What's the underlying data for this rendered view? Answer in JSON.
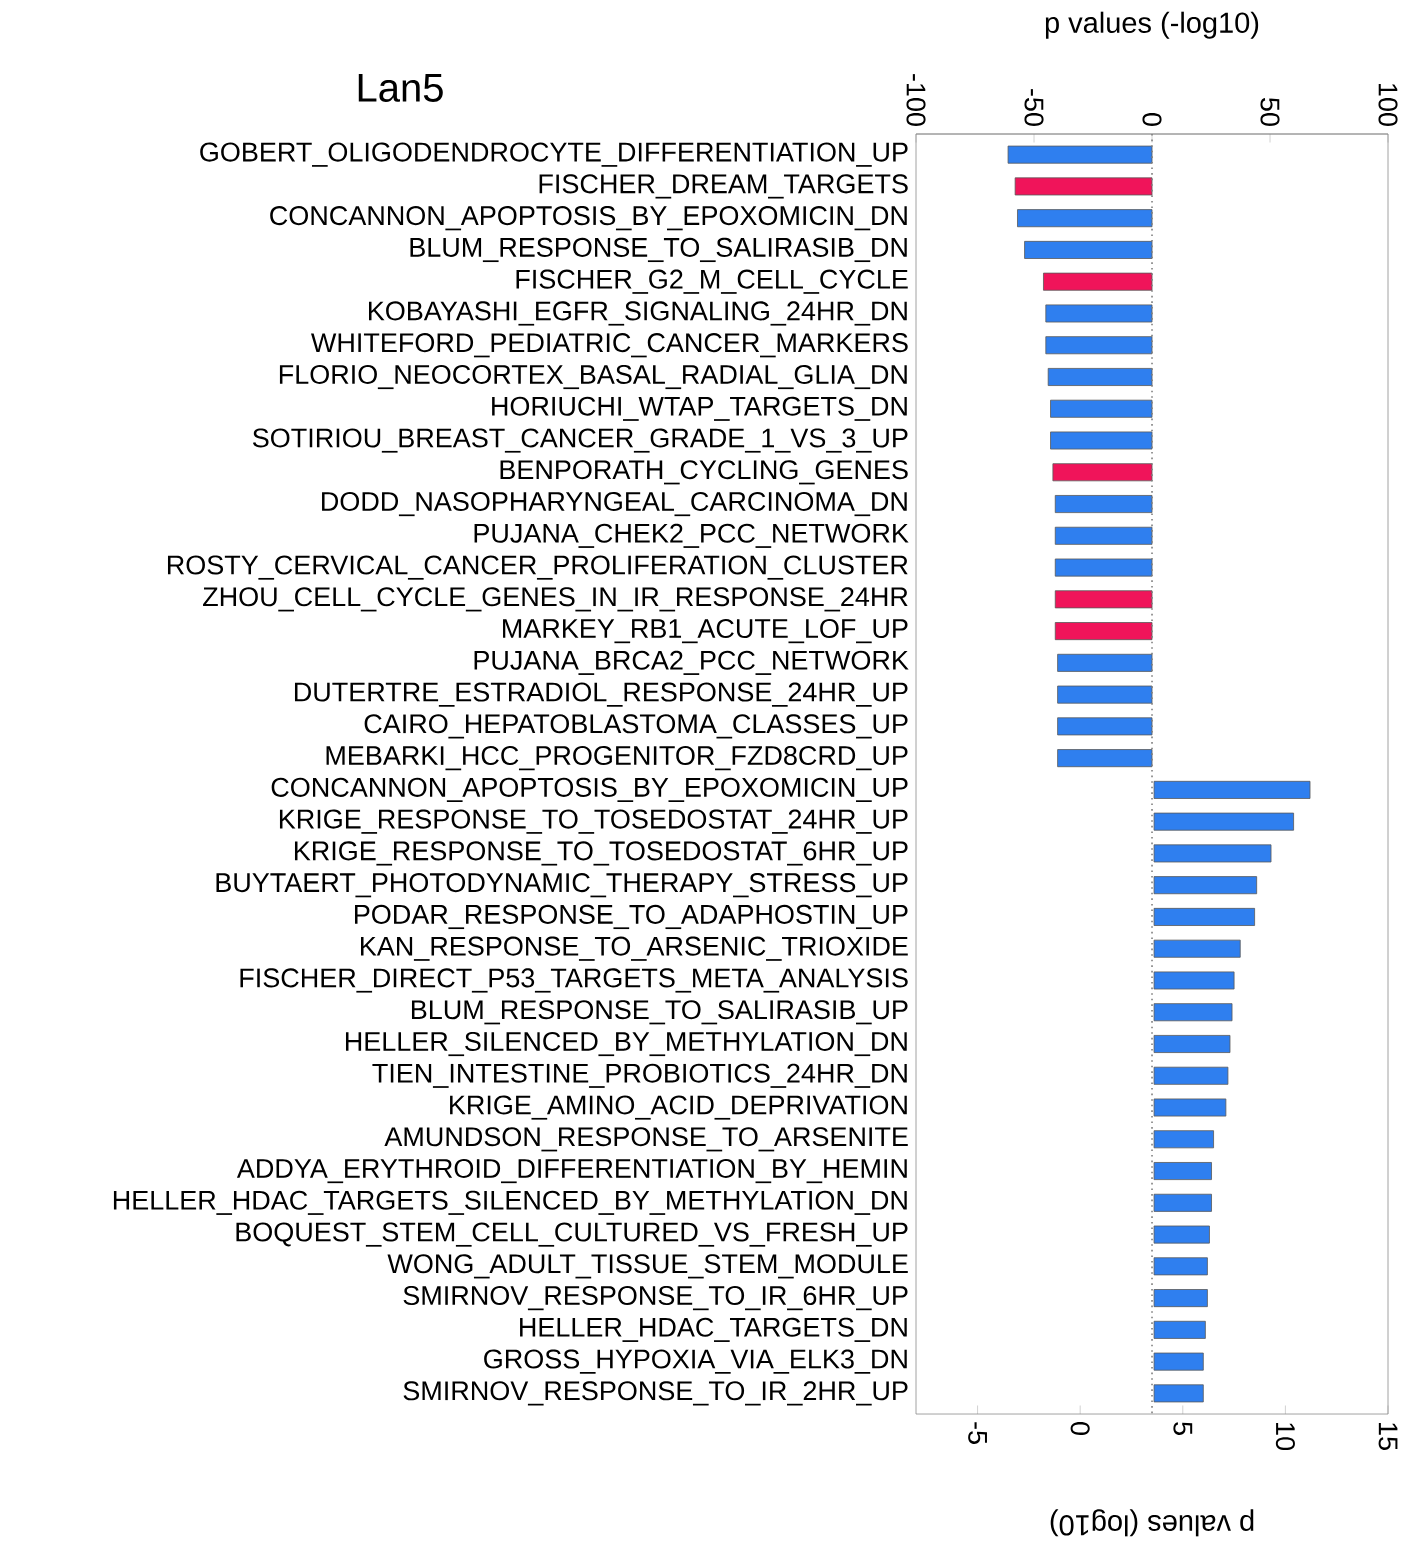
{
  "chart_data": {
    "type": "bar",
    "orientation": "horizontal",
    "title": "Lan5",
    "x2label": "p values (-log10)",
    "xlabel": "p values (log10)",
    "categories": [
      "GOBERT_OLIGODENDROCYTE_DIFFERENTIATION_UP",
      "FISCHER_DREAM_TARGETS",
      "CONCANNON_APOPTOSIS_BY_EPOXOMICIN_DN",
      "BLUM_RESPONSE_TO_SALIRASIB_DN",
      "FISCHER_G2_M_CELL_CYCLE",
      "KOBAYASHI_EGFR_SIGNALING_24HR_DN",
      "WHITEFORD_PEDIATRIC_CANCER_MARKERS",
      "FLORIO_NEOCORTEX_BASAL_RADIAL_GLIA_DN",
      "HORIUCHI_WTAP_TARGETS_DN",
      "SOTIRIOU_BREAST_CANCER_GRADE_1_VS_3_UP",
      "BENPORATH_CYCLING_GENES",
      "DODD_NASOPHARYNGEAL_CARCINOMA_DN",
      "PUJANA_CHEK2_PCC_NETWORK",
      "ROSTY_CERVICAL_CANCER_PROLIFERATION_CLUSTER",
      "ZHOU_CELL_CYCLE_GENES_IN_IR_RESPONSE_24HR",
      "MARKEY_RB1_ACUTE_LOF_UP",
      "PUJANA_BRCA2_PCC_NETWORK",
      "DUTERTRE_ESTRADIOL_RESPONSE_24HR_UP",
      "CAIRO_HEPATOBLASTOMA_CLASSES_UP",
      "MEBARKI_HCC_PROGENITOR_FZD8CRD_UP",
      "CONCANNON_APOPTOSIS_BY_EPOXOMICIN_UP",
      "KRIGE_RESPONSE_TO_TOSEDOSTAT_24HR_UP",
      "KRIGE_RESPONSE_TO_TOSEDOSTAT_6HR_UP",
      "BUYTAERT_PHOTODYNAMIC_THERAPY_STRESS_UP",
      "PODAR_RESPONSE_TO_ADAPHOSTIN_UP",
      "KAN_RESPONSE_TO_ARSENIC_TRIOXIDE",
      "FISCHER_DIRECT_P53_TARGETS_META_ANALYSIS",
      "BLUM_RESPONSE_TO_SALIRASIB_UP",
      "HELLER_SILENCED_BY_METHYLATION_DN",
      "TIEN_INTESTINE_PROBIOTICS_24HR_DN",
      "KRIGE_AMINO_ACID_DEPRIVATION",
      "AMUNDSON_RESPONSE_TO_ARSENITE",
      "ADDYA_ERYTHROID_DIFFERENTIATION_BY_HEMIN",
      "HELLER_HDAC_TARGETS_SILENCED_BY_METHYLATION_DN",
      "BOQUEST_STEM_CELL_CULTURED_VS_FRESH_UP",
      "WONG_ADULT_TISSUE_STEM_MODULE",
      "SMIRNOV_RESPONSE_TO_IR_6HR_UP",
      "HELLER_HDAC_TARGETS_DN",
      "GROSS_HYPOXIA_VIA_ELK3_DN",
      "SMIRNOV_RESPONSE_TO_IR_2HR_UP"
    ],
    "x2lim": [
      -100,
      100
    ],
    "x2ticks": [
      -100,
      -50,
      0,
      50,
      100
    ],
    "xlim": [
      -8,
      15
    ],
    "xticks": [
      -5,
      0,
      5,
      10,
      15
    ],
    "series": [
      {
        "axis": "x2",
        "values": [
          -61,
          -58,
          -57,
          -54,
          -46,
          -45,
          -45,
          -44,
          -43,
          -43,
          -42,
          -41,
          -41,
          -41,
          -41,
          -41,
          -40,
          -40,
          -40,
          -40,
          null,
          null,
          null,
          null,
          null,
          null,
          null,
          null,
          null,
          null,
          null,
          null,
          null,
          null,
          null,
          null,
          null,
          null,
          null,
          null
        ],
        "colors": [
          "#2f7fef",
          "#f0145a",
          "#2f7fef",
          "#2f7fef",
          "#f0145a",
          "#2f7fef",
          "#2f7fef",
          "#2f7fef",
          "#2f7fef",
          "#2f7fef",
          "#f0145a",
          "#2f7fef",
          "#2f7fef",
          "#2f7fef",
          "#f0145a",
          "#f0145a",
          "#2f7fef",
          "#2f7fef",
          "#2f7fef",
          "#2f7fef",
          null,
          null,
          null,
          null,
          null,
          null,
          null,
          null,
          null,
          null,
          null,
          null,
          null,
          null,
          null,
          null,
          null,
          null,
          null,
          null
        ]
      },
      {
        "color": "#2f7fef",
        "values": [
          null,
          null,
          null,
          null,
          null,
          null,
          null,
          null,
          null,
          null,
          null,
          null,
          null,
          null,
          null,
          null,
          null,
          null,
          null,
          null,
          7.6,
          6.8,
          5.7,
          5.0,
          4.9,
          4.2,
          3.9,
          3.8,
          3.7,
          3.6,
          3.5,
          2.9,
          2.8,
          2.8,
          2.7,
          2.6,
          2.6,
          2.5,
          2.4,
          2.4
        ],
        "base": [
          null,
          null,
          null,
          null,
          null,
          null,
          null,
          null,
          null,
          null,
          null,
          null,
          null,
          null,
          null,
          null,
          null,
          null,
          null,
          null,
          3.6,
          3.6,
          3.6,
          3.6,
          3.6,
          3.6,
          3.6,
          3.6,
          3.6,
          3.6,
          3.6,
          3.6,
          3.6,
          3.6,
          3.6,
          3.6,
          3.6,
          3.6,
          3.6,
          3.6
        ]
      }
    ],
    "ref_lines": [
      {
        "axis": "x2",
        "value": 0,
        "color": "#808080",
        "line_style": "dotted"
      }
    ]
  }
}
